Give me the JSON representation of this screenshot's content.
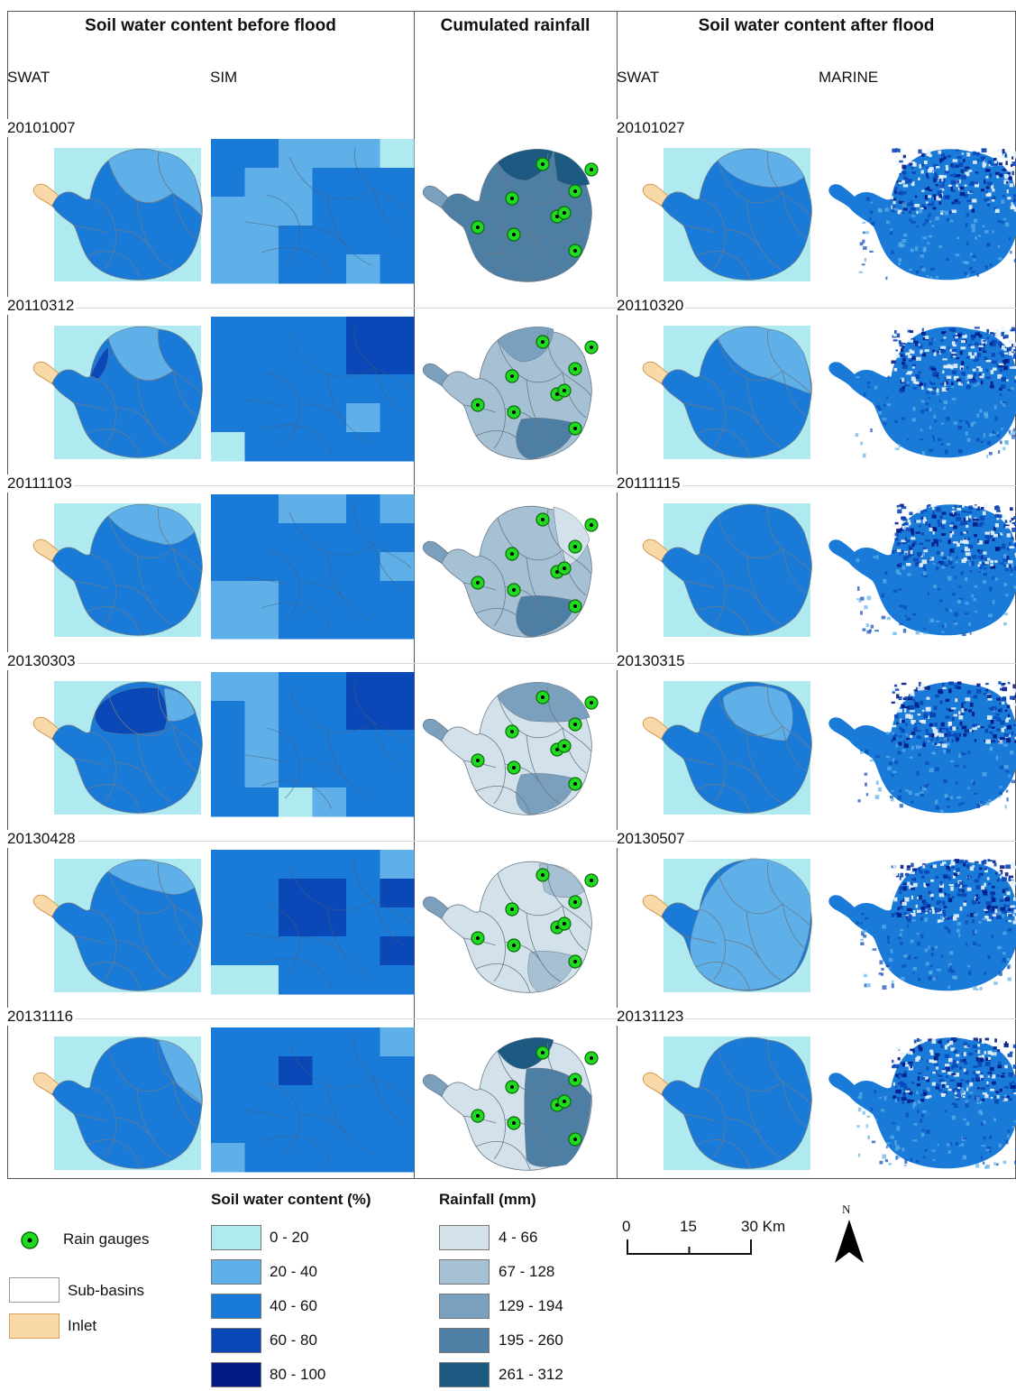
{
  "headers": {
    "before": "Soil water content before flood",
    "rain": "Cumulated rainfall",
    "after": "Soil water content after flood"
  },
  "subheaders": {
    "swat_before": "SWAT",
    "sim": "SIM",
    "swat_after": "SWAT",
    "marine": "MARINE"
  },
  "rows": [
    {
      "before_date": "20101007",
      "after_date": "20101027"
    },
    {
      "before_date": "20110312",
      "after_date": "20110320"
    },
    {
      "before_date": "20111103",
      "after_date": "20111115"
    },
    {
      "before_date": "20130303",
      "after_date": "20130315"
    },
    {
      "before_date": "20130428",
      "after_date": "20130507"
    },
    {
      "before_date": "20131116",
      "after_date": "20131123"
    }
  ],
  "legend": {
    "rain_gauges": "Rain gauges",
    "sub_basins": "Sub-basins",
    "inlet": "Inlet",
    "soil_title": "Soil water content (%)",
    "soil_classes": [
      {
        "label": "0 - 20",
        "color": "#aeeaf0"
      },
      {
        "label": "20 - 40",
        "color": "#5fb0e8"
      },
      {
        "label": "40 - 60",
        "color": "#1a7ad8"
      },
      {
        "label": "60 - 80",
        "color": "#0a48b8"
      },
      {
        "label": "80 - 100",
        "color": "#021a86"
      }
    ],
    "rain_title": "Rainfall (mm)",
    "rain_classes": [
      {
        "label": "4 - 66",
        "color": "#d3e1ea"
      },
      {
        "label": "67 - 128",
        "color": "#a6c0d4"
      },
      {
        "label": "129 - 194",
        "color": "#7aa0bd"
      },
      {
        "label": "195 - 260",
        "color": "#4d7ea3"
      },
      {
        "label": "261 - 312",
        "color": "#1d5a82"
      }
    ],
    "colors": {
      "gauge": "#22d922",
      "inlet": "#fad9a8",
      "subbasin_fill": "#ffffff"
    }
  },
  "scale": {
    "t0": "0",
    "t1": "15",
    "t2": "30 Km"
  },
  "north": "N"
}
